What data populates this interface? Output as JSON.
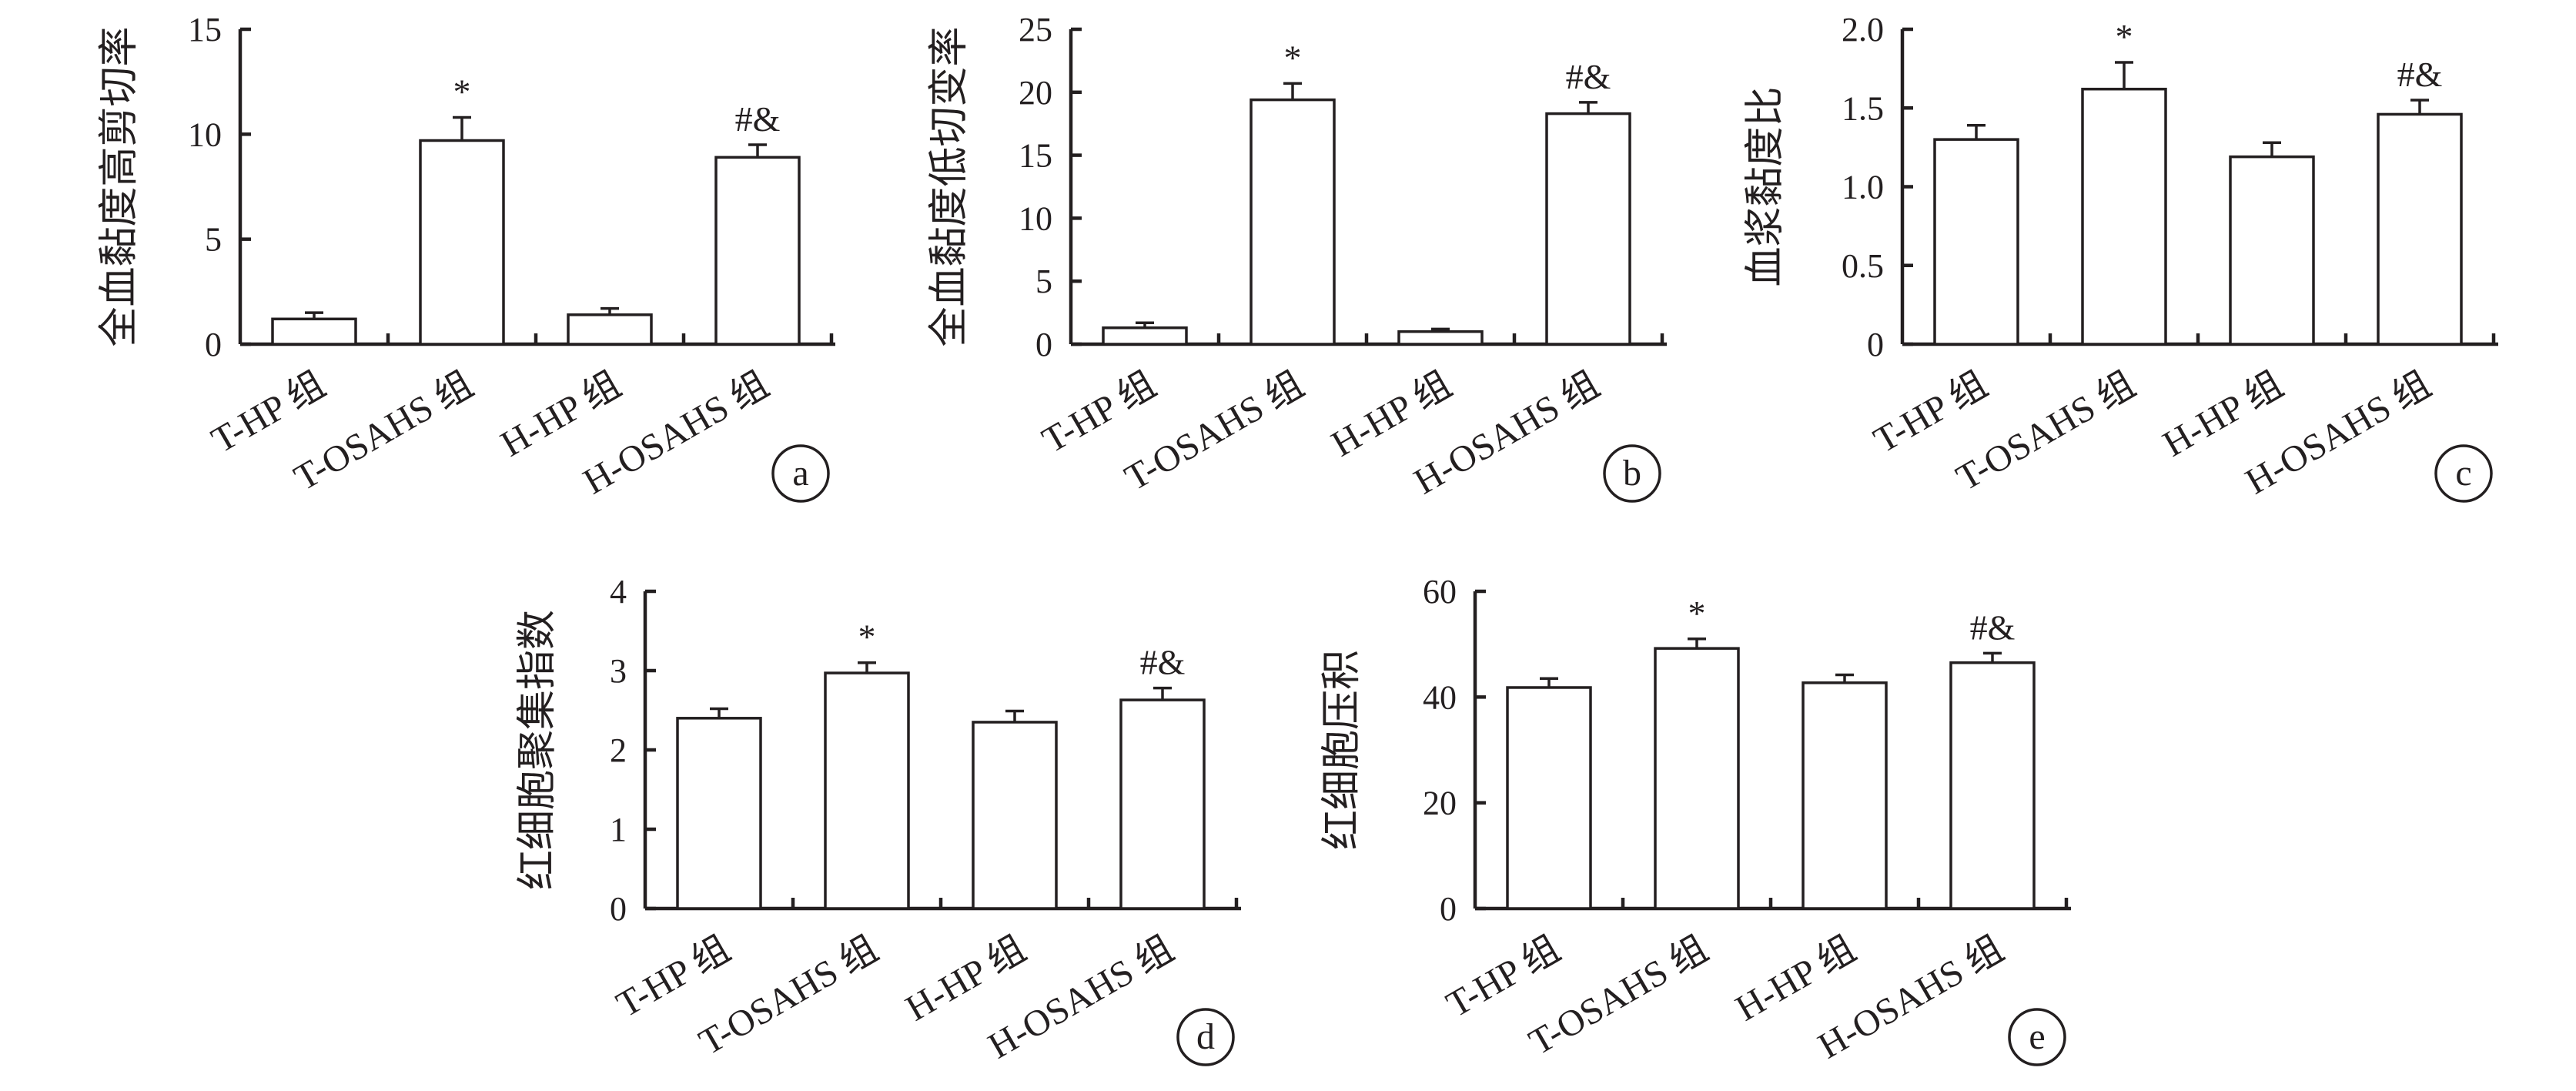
{
  "categories": [
    "T-HP 组",
    "T-OSAHS 组",
    "H-HP 组",
    "H-OSAHS 组"
  ],
  "colors": {
    "ink": "#231f20",
    "bar_fill": "#ffffff"
  },
  "chart_data": [
    {
      "type": "bar",
      "panel": "a",
      "ylabel": "全血黏度高剪切率",
      "ylim": [
        0,
        15
      ],
      "yticks": [
        0,
        5,
        10,
        15
      ],
      "tick_labels": [
        "0",
        "5",
        "10",
        "15"
      ],
      "values": [
        1.2,
        9.7,
        1.4,
        8.9
      ],
      "errors": [
        0.3,
        1.1,
        0.3,
        0.6
      ],
      "annotations": [
        "",
        "*",
        "",
        "#&"
      ],
      "grid": false,
      "legend": "none"
    },
    {
      "type": "bar",
      "panel": "b",
      "ylabel": "全血黏度低切变率",
      "ylim": [
        0,
        25
      ],
      "yticks": [
        0,
        5,
        10,
        15,
        20,
        25
      ],
      "tick_labels": [
        "0",
        "5",
        "10",
        "15",
        "20",
        "25"
      ],
      "values": [
        1.3,
        19.4,
        1.0,
        18.3
      ],
      "errors": [
        0.4,
        1.3,
        0.2,
        0.9
      ],
      "annotations": [
        "",
        "*",
        "",
        "#&"
      ],
      "grid": false,
      "legend": "none"
    },
    {
      "type": "bar",
      "panel": "c",
      "ylabel": "血浆黏度比",
      "ylim": [
        0,
        2.0
      ],
      "yticks": [
        0,
        0.5,
        1.0,
        1.5,
        2.0
      ],
      "tick_labels": [
        "0",
        "0.5",
        "1.0",
        "1.5",
        "2.0"
      ],
      "values": [
        1.3,
        1.62,
        1.19,
        1.46
      ],
      "errors": [
        0.09,
        0.17,
        0.09,
        0.09
      ],
      "annotations": [
        "",
        "*",
        "",
        "#&"
      ],
      "grid": false,
      "legend": "none"
    },
    {
      "type": "bar",
      "panel": "d",
      "ylabel": "红细胞聚集指数",
      "ylim": [
        0,
        4
      ],
      "yticks": [
        0,
        1,
        2,
        3,
        4
      ],
      "tick_labels": [
        "0",
        "1",
        "2",
        "3",
        "4"
      ],
      "values": [
        2.4,
        2.97,
        2.35,
        2.63
      ],
      "errors": [
        0.12,
        0.13,
        0.14,
        0.15
      ],
      "annotations": [
        "",
        "*",
        "",
        "#&"
      ],
      "grid": false,
      "legend": "none"
    },
    {
      "type": "bar",
      "panel": "e",
      "ylabel": "红细胞压积",
      "ylim": [
        0,
        60
      ],
      "yticks": [
        0,
        20,
        40,
        60
      ],
      "tick_labels": [
        "0",
        "20",
        "40",
        "60"
      ],
      "values": [
        41.8,
        49.2,
        42.7,
        46.5
      ],
      "errors": [
        1.7,
        1.8,
        1.5,
        1.8
      ],
      "annotations": [
        "",
        "*",
        "",
        "#&"
      ],
      "grid": false,
      "legend": "none"
    }
  ]
}
